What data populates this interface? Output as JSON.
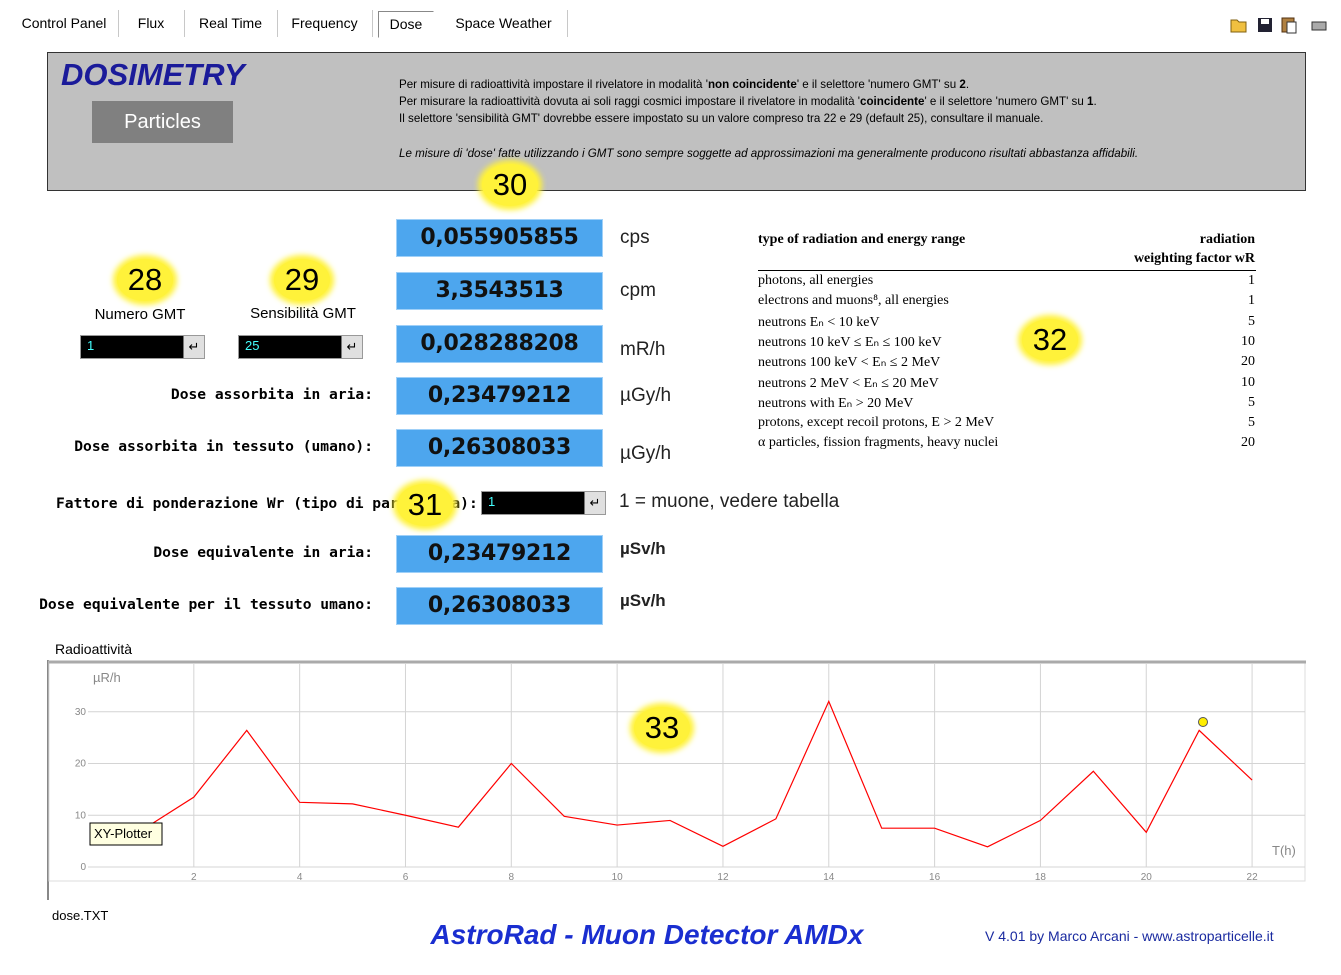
{
  "tabs": [
    "Control Panel",
    "Flux",
    "Real Time",
    "Frequency",
    "Dose",
    "Space Weather"
  ],
  "selected_tab": 4,
  "panel": {
    "title": "DOSIMETRY",
    "button": "Particles",
    "lines": [
      [
        {
          "text": "Per misure di radioattività impostare il rivelatore in modalità '"
        },
        {
          "text": "non coincidente",
          "bold": true
        },
        {
          "text": "' e il selettore 'numero GMT' su "
        },
        {
          "text": "2",
          "bold": true
        },
        {
          "text": "."
        }
      ],
      [
        {
          "text": "Per misurare la radioattività dovuta ai soli raggi cosmici impostare il rivelatore in modalità '"
        },
        {
          "text": "coincidente",
          "bold": true
        },
        {
          "text": "' e il selettore 'numero GMT' su "
        },
        {
          "text": "1",
          "bold": true
        },
        {
          "text": "."
        }
      ],
      [
        {
          "text": "Il selettore 'sensibilità GMT' dovrebbe essere impostato su un valore compreso tra 22 e 29 (default 25), consultare il manuale."
        }
      ]
    ],
    "note": "Le misure di 'dose' fatte utilizzando i GMT sono sempre soggette ad approssimazioni  ma generalmente producono risultati abbastanza affidabili."
  },
  "badges": [
    30,
    28,
    29,
    31,
    32,
    33
  ],
  "gmt": {
    "numero_label": "Numero GMT",
    "numero_value": "1",
    "sens_label": "Sensibilità GMT",
    "sens_value": "25"
  },
  "readings": [
    {
      "value": "0,055905855",
      "unit": "cps"
    },
    {
      "value": "3,3543513",
      "unit": "cpm"
    },
    {
      "value": "0,028288208",
      "unit": "mR/h"
    },
    {
      "label": "Dose assorbita in aria:",
      "value": "0,23479212",
      "unit": "µGy/h"
    },
    {
      "label": "Dose assorbita in tessuto (umano):",
      "value": "0,26308033",
      "unit": "µGy/h"
    },
    {
      "label": "Dose equivalente in aria:",
      "value": "0,23479212",
      "unit": "µSv/h",
      "bold": true
    },
    {
      "label": "Dose equivalente per il tessuto umano:",
      "value": "0,26308033",
      "unit": "µSv/h",
      "bold": true
    }
  ],
  "weighting": {
    "label": "Fattore di ponderazione Wr (tipo di particella):",
    "value": "1",
    "note": "1 = muone, vedere tabella"
  },
  "table": {
    "header": "type of radiation and energy range",
    "factor_header": [
      "radiation",
      "weighting factor wR"
    ],
    "rows": [
      [
        "photons, all energies",
        1
      ],
      [
        "electrons and muons⁸, all energies",
        1
      ],
      [
        "neutrons Eₙ < 10 keV",
        5
      ],
      [
        "neutrons 10 keV ≤ Eₙ ≤ 100 keV",
        10
      ],
      [
        "neutrons 100 keV < Eₙ ≤ 2 MeV",
        20
      ],
      [
        "neutrons 2 MeV < Eₙ ≤ 20 MeV",
        10
      ],
      [
        "neutrons with Eₙ > 20 MeV",
        5
      ],
      [
        "protons, except recoil protons, E > 2 MeV",
        5
      ],
      [
        "α particles, fission fragments, heavy nuclei",
        20
      ]
    ]
  },
  "chart_data": {
    "type": "line",
    "title": "Radioattività",
    "y_label": "µR/h",
    "x_label": "T(h)",
    "x": [
      1,
      2,
      3,
      4,
      5,
      6,
      7,
      8,
      9,
      10,
      11,
      12,
      13,
      14,
      15,
      16,
      17,
      18,
      19,
      20,
      21,
      22
    ],
    "series": [
      {
        "color": "#ff0000",
        "values": [
          7,
          13.5,
          26.4,
          12.5,
          12.2,
          10,
          7.7,
          20,
          9.8,
          8.1,
          9,
          4,
          9.3,
          32,
          7.5,
          7.5,
          3.9,
          9,
          18.5,
          6.7,
          26.4,
          16.8
        ]
      }
    ],
    "xlim": [
      0,
      23
    ],
    "ylim": [
      0,
      40
    ],
    "xticks": [
      2,
      4,
      6,
      8,
      10,
      12,
      14,
      16,
      18,
      20,
      22
    ],
    "yticks": [
      0,
      10,
      20,
      30
    ],
    "grid": true
  },
  "tooltip": "XY-Plotter",
  "file": "dose.TXT",
  "footer": {
    "title": "AstroRad - Muon Detector AMDx",
    "version": "V 4.01 by Marco Arcani - www.astroparticelle.it"
  }
}
